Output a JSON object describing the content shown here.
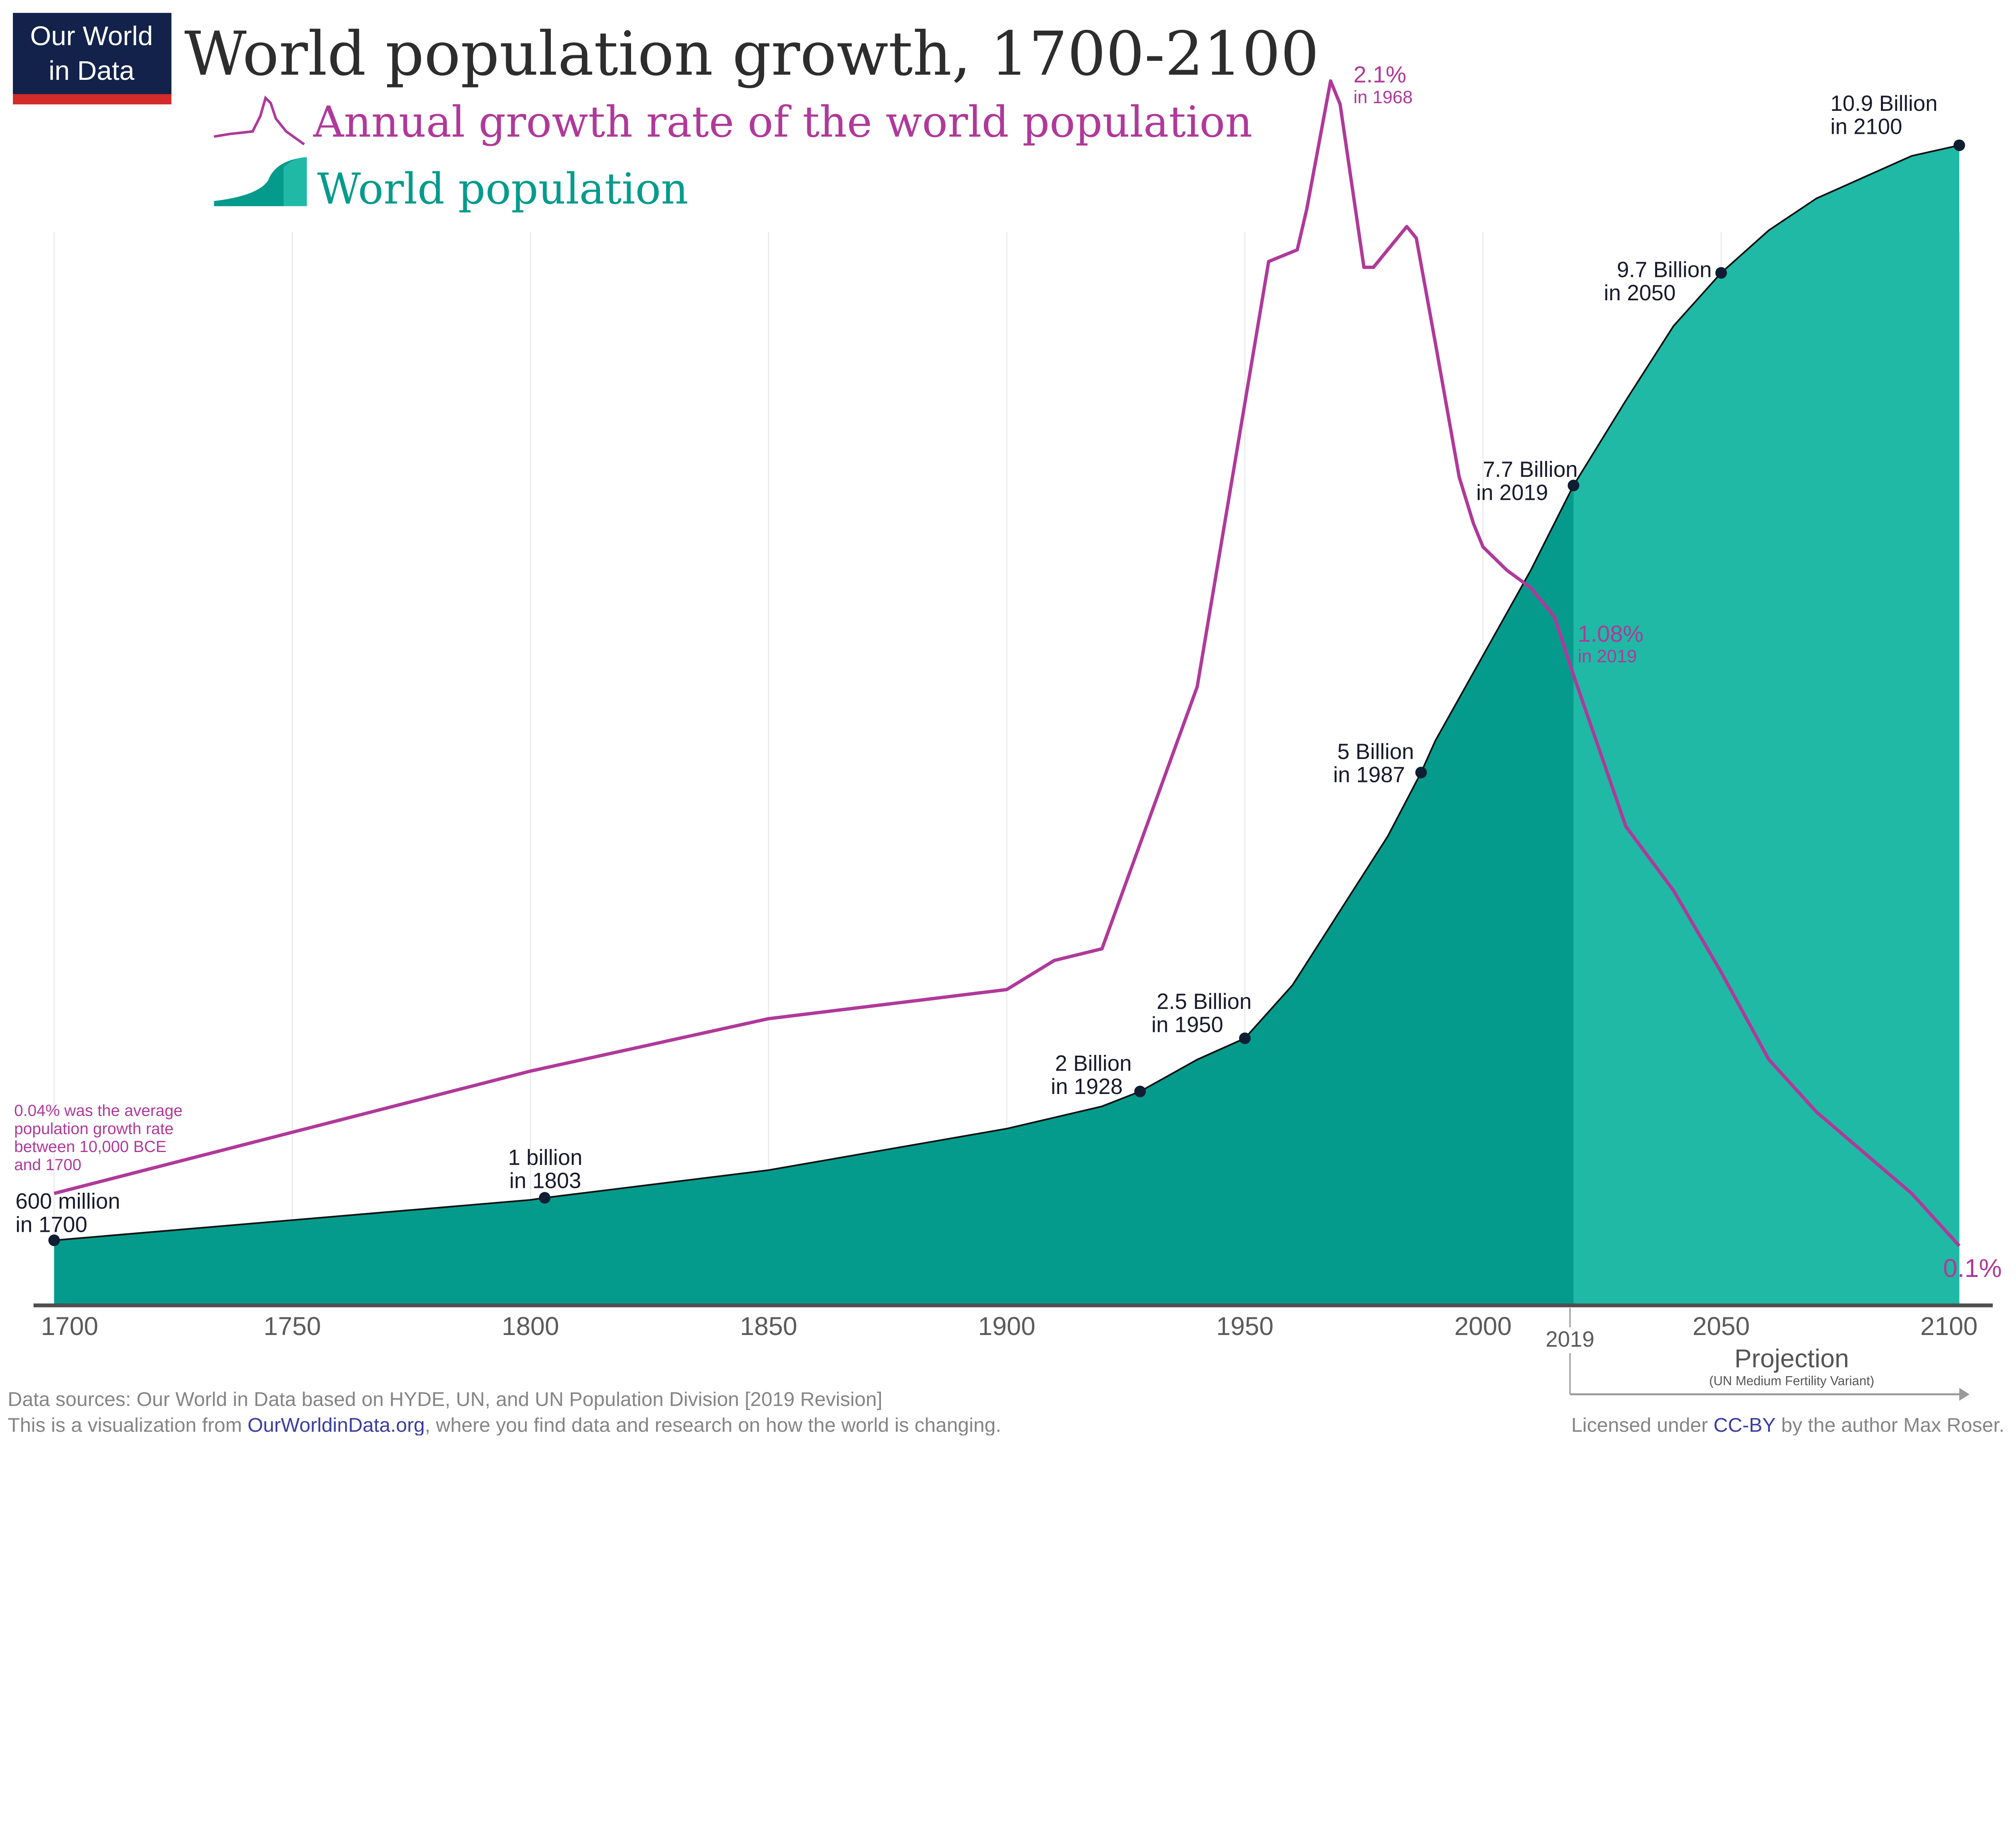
{
  "logo": {
    "line1": "Our World",
    "line2": "in Data",
    "bg": "#13224a",
    "accent": "#d42b2b"
  },
  "colors": {
    "history": "#049b8c",
    "projection": "#1fb9a5",
    "rate": "#b0399a",
    "outline": "#111111"
  },
  "chart_data": {
    "type": "area+line",
    "title": "World population growth, 1700-2100",
    "legend": [
      {
        "name": "Annual growth rate of the world population",
        "icon": "line-icon"
      },
      {
        "name": "World population",
        "icon": "area-icon"
      }
    ],
    "xlim": [
      1700,
      2100
    ],
    "x_ticks": [
      "1700",
      "1750",
      "1800",
      "1850",
      "1900",
      "1950",
      "2000",
      "2050",
      "2100"
    ],
    "extra_tick": "2019",
    "grid": "vertical",
    "projection_start": 2019,
    "projection_label": "Projection",
    "projection_sublabel": "(UN Medium Fertility Variant)",
    "population_billion": {
      "x": [
        1700,
        1750,
        1800,
        1803,
        1850,
        1900,
        1920,
        1928,
        1940,
        1950,
        1955,
        1960,
        1970,
        1980,
        1987,
        1990,
        2000,
        2010,
        2019,
        2030,
        2040,
        2050,
        2060,
        2070,
        2080,
        2090,
        2100
      ],
      "y": [
        0.6,
        0.79,
        0.98,
        1.0,
        1.26,
        1.65,
        1.86,
        2.0,
        2.3,
        2.5,
        2.75,
        3.0,
        3.7,
        4.4,
        5.0,
        5.3,
        6.1,
        6.9,
        7.7,
        8.5,
        9.2,
        9.7,
        10.1,
        10.4,
        10.6,
        10.8,
        10.9
      ]
    },
    "growth_rate_percent": {
      "x": [
        1700,
        1800,
        1850,
        1900,
        1910,
        1920,
        1940,
        1955,
        1961,
        1963,
        1968,
        1970,
        1975,
        1977,
        1984,
        1986,
        1990,
        1995,
        1998,
        2000,
        2005,
        2010,
        2015,
        2019,
        2030,
        2040,
        2050,
        2060,
        2070,
        2080,
        2090,
        2100
      ],
      "y": [
        0.19,
        0.4,
        0.49,
        0.54,
        0.59,
        0.61,
        1.06,
        1.79,
        1.81,
        1.88,
        2.1,
        2.06,
        1.78,
        1.78,
        1.85,
        1.83,
        1.65,
        1.42,
        1.34,
        1.3,
        1.26,
        1.23,
        1.18,
        1.08,
        0.82,
        0.71,
        0.57,
        0.42,
        0.33,
        0.26,
        0.19,
        0.1
      ]
    },
    "annotations": {
      "p1700": {
        "value": "600 million",
        "when": "in 1700"
      },
      "p1803": {
        "value": "1 billion",
        "when": "in 1803"
      },
      "p1928": {
        "value": "2 Billion",
        "when": "in 1928"
      },
      "p1950": {
        "value": "2.5 Billion",
        "when": "in 1950"
      },
      "p1987": {
        "value": "5 Billion",
        "when": "in 1987"
      },
      "p2019": {
        "value": "7.7 Billion",
        "when": "in 2019"
      },
      "p2050": {
        "value": "9.7 Billion",
        "when": "in 2050"
      },
      "p2100": {
        "value": "10.9 Billion",
        "when": "in 2100"
      },
      "r1968": {
        "value": "2.1%",
        "when": "in 1968"
      },
      "r2019": {
        "value": "1.08%",
        "when": "in 2019"
      },
      "r2100": {
        "value": "0.1%"
      },
      "note": [
        "0.04% was the average",
        "population growth rate",
        "between 10,000 BCE",
        "and 1700"
      ]
    }
  },
  "footer": {
    "sources": "Data sources: Our World in Data based on HYDE, UN, and UN Population Division [2019 Revision]",
    "vis_pre": "This is a visualization from ",
    "vis_link": "OurWorldinData.org",
    "vis_post": ", where you find data and research on how the world is changing.",
    "lic_pre": "Licensed under ",
    "lic_link": "CC-BY",
    "lic_post": " by the author Max Roser."
  }
}
